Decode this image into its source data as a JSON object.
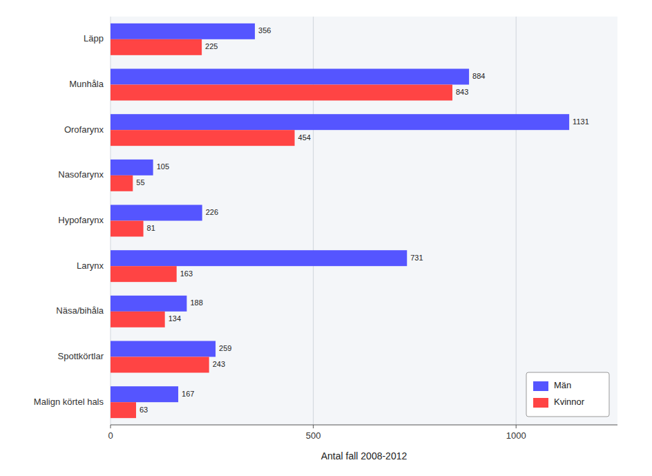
{
  "chart_data": {
    "type": "bar",
    "orientation": "horizontal",
    "categories": [
      "Läpp",
      "Munhåla",
      "Orofarynx",
      "Nasofarynx",
      "Hypofarynx",
      "Larynx",
      "Näsa/bihåla",
      "Spottkörtlar",
      "Malign körtel hals"
    ],
    "series": [
      {
        "name": "Män",
        "color": "#5555ff",
        "values": [
          356,
          884,
          1131,
          105,
          226,
          731,
          188,
          259,
          167
        ]
      },
      {
        "name": "Kvinnor",
        "color": "#ff4444",
        "values": [
          225,
          843,
          454,
          55,
          81,
          163,
          134,
          243,
          63
        ]
      }
    ],
    "xlabel": "Antal fall 2008-2012",
    "xlim": [
      0,
      1250
    ],
    "xticks": [
      0,
      500,
      1000
    ],
    "grid": true,
    "legend": "lower right",
    "data_labels": true
  }
}
